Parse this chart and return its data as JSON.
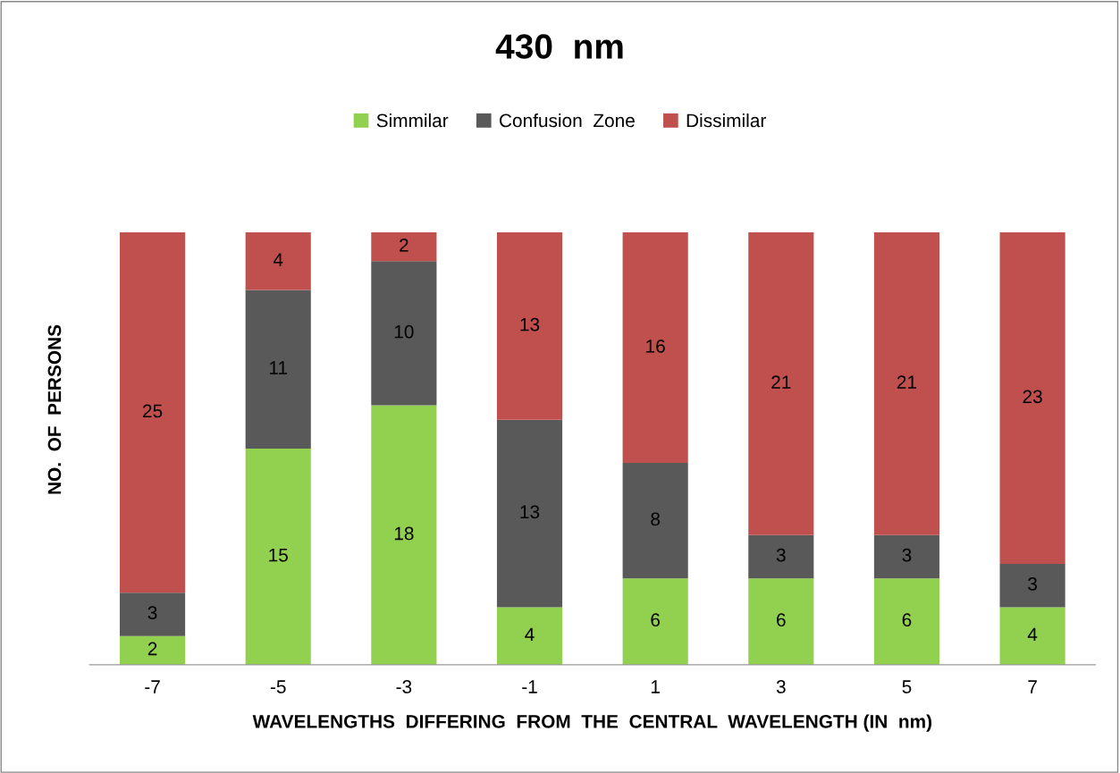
{
  "chart_data": {
    "type": "bar",
    "title": "430  nm",
    "xlabel": "WAVELENGTHS  DIFFERING  FROM  THE  CENTRAL  WAVELENGTH (IN  nm)",
    "ylabel": "NO.  OF  PERSONS",
    "categories": [
      "-7",
      "-5",
      "-3",
      "-1",
      "1",
      "3",
      "5",
      "7"
    ],
    "stacked": true,
    "data_labels": true,
    "legend": "top",
    "grid": false,
    "series": [
      {
        "name": "Simmilar",
        "color": "#92d050",
        "values": [
          2,
          15,
          18,
          4,
          6,
          6,
          6,
          4
        ]
      },
      {
        "name": "Confusion  Zone",
        "color": "#595959",
        "values": [
          3,
          11,
          10,
          13,
          8,
          3,
          3,
          3
        ]
      },
      {
        "name": "Dissimilar",
        "color": "#c0504d",
        "values": [
          25,
          4,
          2,
          13,
          16,
          21,
          21,
          23
        ]
      }
    ]
  }
}
